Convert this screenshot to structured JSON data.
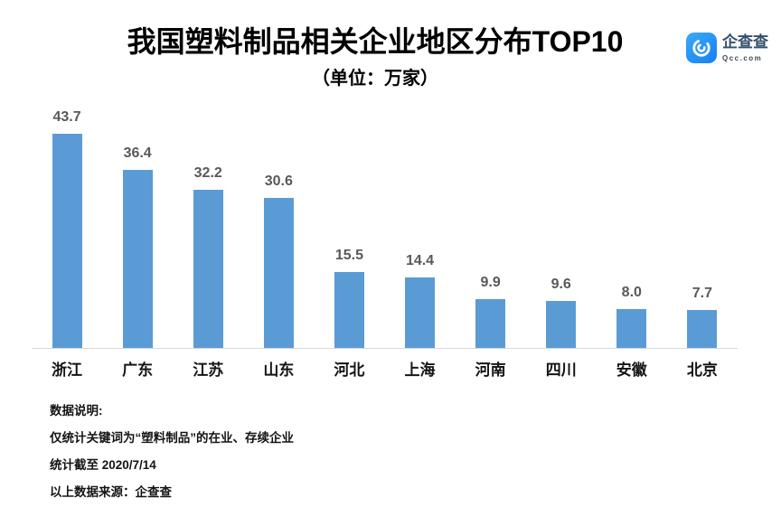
{
  "page": {
    "background": "#ffffff"
  },
  "header": {
    "title": "我国塑料制品相关企业地区分布TOP10",
    "subtitle": "（单位：万家）"
  },
  "logo": {
    "brand": "企查查",
    "domain": "Qcc.com",
    "icon": "qcc-swirl-icon",
    "icon_color": "#2493f1",
    "text_color": "#33506b"
  },
  "chart_data": {
    "type": "bar",
    "title": "我国塑料制品相关企业地区分布TOP10",
    "subtitle": "（单位：万家）",
    "unit": "万家",
    "categories": [
      "浙江",
      "广东",
      "江苏",
      "山东",
      "河北",
      "上海",
      "河南",
      "四川",
      "安徽",
      "北京"
    ],
    "values": [
      43.7,
      36.4,
      32.2,
      30.6,
      15.5,
      14.4,
      9.9,
      9.6,
      8.0,
      7.7
    ],
    "value_label_decimals": 1,
    "bar_color": "#5B9BD5",
    "value_label_color": "#595959",
    "axis_line_color": "#D9D9D9",
    "ylim": [
      0,
      48
    ],
    "grid": false,
    "legend": false,
    "value_labels": true
  },
  "footer": {
    "lines": [
      "数据说明:",
      "仅统计关键词为“塑料制品”的在业、存续企业",
      "统计截至 2020/7/14",
      "以上数据来源：企查查"
    ]
  }
}
